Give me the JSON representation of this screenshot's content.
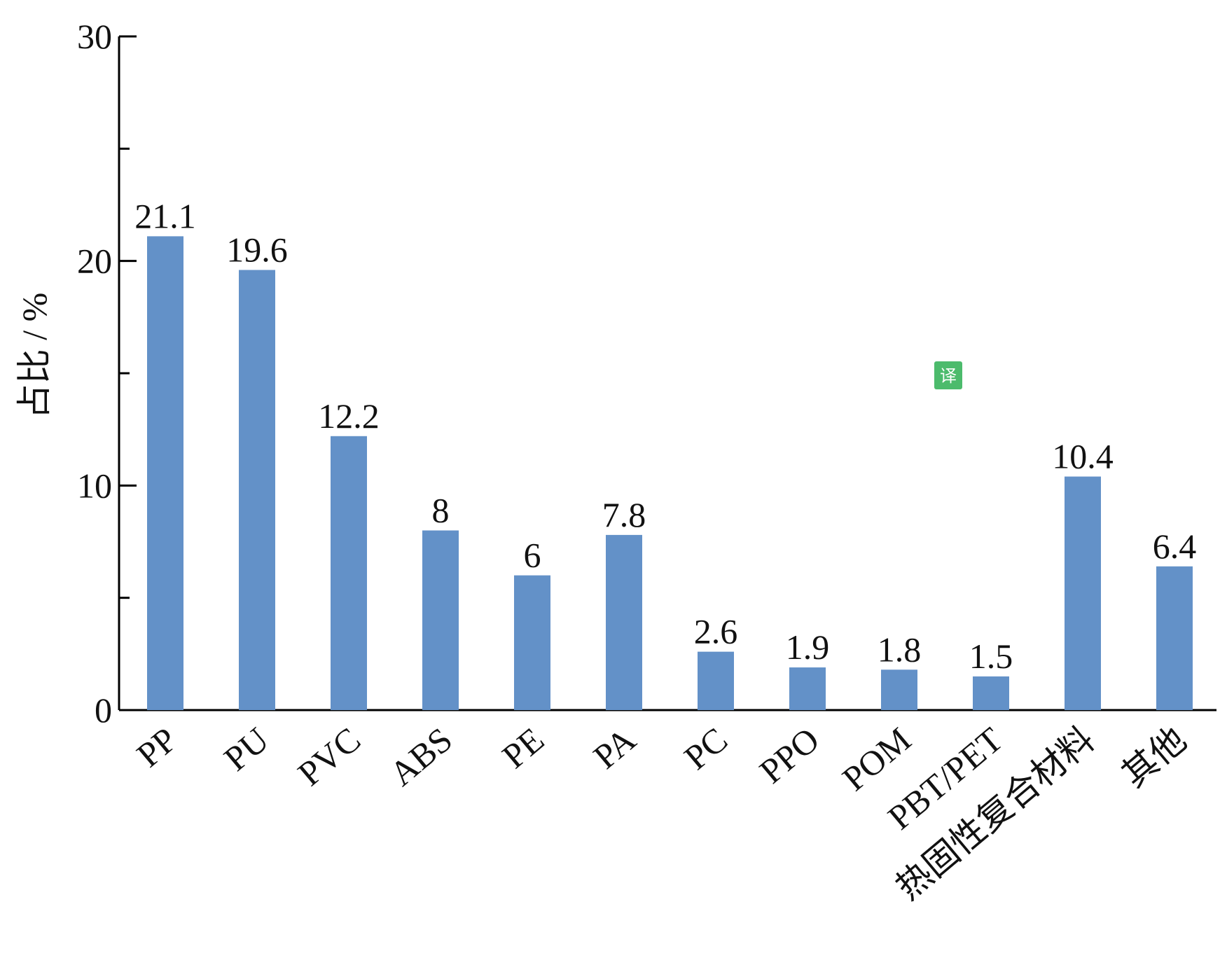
{
  "chart_data": {
    "type": "bar",
    "y_label": "占比 / %",
    "categories": [
      "PP",
      "PU",
      "PVC",
      "ABS",
      "PE",
      "PA",
      "PC",
      "PPO",
      "POM",
      "PBT/PET",
      "热固性复合材料",
      "其他"
    ],
    "values": [
      21.1,
      19.6,
      12.2,
      8,
      6,
      7.8,
      2.6,
      1.9,
      1.8,
      1.5,
      10.4,
      6.4
    ],
    "color": "#6391c8",
    "ylim": [
      0,
      30
    ],
    "yticks": [
      0,
      10,
      20,
      30
    ],
    "minor_yticks": [
      5,
      15,
      25
    ],
    "grid": false
  },
  "translate_button": "译"
}
